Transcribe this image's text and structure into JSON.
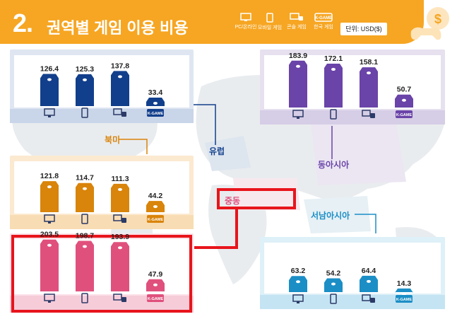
{
  "header": {
    "number": "2.",
    "title": "권역별 게임 이용 비용",
    "unit": "단위: USD($)",
    "legend": [
      {
        "label": "PC/온라인",
        "icon": "monitor-icon"
      },
      {
        "label": "모바일 게임",
        "icon": "smartphone-icon"
      },
      {
        "label": "콘솔 게임",
        "icon": "console-icon"
      },
      {
        "label": "한국 게임",
        "icon": "k-game-icon"
      }
    ],
    "k_game_badge": "K-GAME",
    "accent_color": "#f6a623"
  },
  "chart_data": [
    {
      "type": "bar",
      "region": "북미",
      "categories": [
        "PC/온라인",
        "모바일 게임",
        "콘솔 게임",
        "한국 게임"
      ],
      "values": [
        121.8,
        114.7,
        111.3,
        44.2
      ],
      "labels": [
        "121.8",
        "114.7",
        "111.3",
        "44.2"
      ],
      "color": "#d9840a"
    },
    {
      "type": "bar",
      "region": "유럽",
      "categories": [
        "PC/온라인",
        "모바일 게임",
        "콘솔 게임",
        "한국 게임"
      ],
      "values": [
        126.4,
        125.3,
        137.8,
        33.4
      ],
      "labels": [
        "126.4",
        "125.3",
        "137.8",
        "33.4"
      ],
      "color": "#123f8c"
    },
    {
      "type": "bar",
      "region": "동아시아",
      "categories": [
        "PC/온라인",
        "모바일 게임",
        "콘솔 게임",
        "한국 게임"
      ],
      "values": [
        183.9,
        172.1,
        158.1,
        50.7
      ],
      "labels": [
        "183.9",
        "172.1",
        "158.1",
        "50.7"
      ],
      "color": "#6a44a8"
    },
    {
      "type": "bar",
      "region": "중동",
      "categories": [
        "PC/온라인",
        "모바일 게임",
        "콘솔 게임",
        "한국 게임"
      ],
      "values": [
        203.5,
        198.7,
        193.9,
        47.9
      ],
      "labels": [
        "203.5",
        "198.7",
        "193.9",
        "47.9"
      ],
      "color": "#e0507d"
    },
    {
      "type": "bar",
      "region": "서남아시아",
      "categories": [
        "PC/온라인",
        "모바일 게임",
        "콘솔 게임",
        "한국 게임"
      ],
      "values": [
        63.2,
        54.2,
        64.4,
        14.3
      ],
      "labels": [
        "63.2",
        "54.2",
        "64.4",
        "14.3"
      ],
      "color": "#1b8ec6"
    }
  ]
}
